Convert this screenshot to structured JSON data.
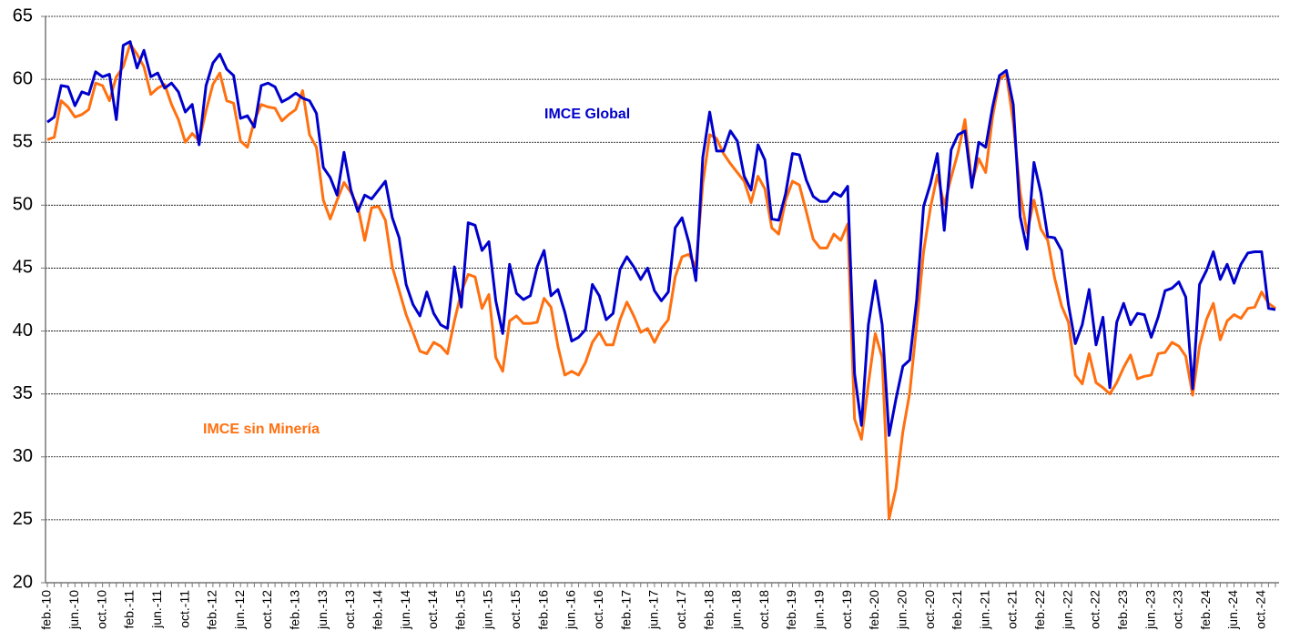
{
  "chart_data": {
    "type": "line",
    "categories": [
      "feb.-10",
      null,
      null,
      null,
      "jun.-10",
      null,
      null,
      null,
      "oct.-10",
      null,
      null,
      null,
      "feb.-11",
      null,
      null,
      null,
      "jun.-11",
      null,
      null,
      null,
      "oct.-11",
      null,
      null,
      null,
      "feb.-12",
      null,
      null,
      null,
      "jun.-12",
      null,
      null,
      null,
      "oct.-12",
      null,
      null,
      null,
      "feb.-13",
      null,
      null,
      null,
      "jun.-13",
      null,
      null,
      null,
      "oct.-13",
      null,
      null,
      null,
      "feb.-14",
      null,
      null,
      null,
      "jun.-14",
      null,
      null,
      null,
      "oct.-14",
      null,
      null,
      null,
      "feb.-15",
      null,
      null,
      null,
      "jun.-15",
      null,
      null,
      null,
      "oct.-15",
      null,
      null,
      null,
      "feb.-16",
      null,
      null,
      null,
      "jun.-16",
      null,
      null,
      null,
      "oct.-16",
      null,
      null,
      null,
      "feb.-17",
      null,
      null,
      null,
      "jun.-17",
      null,
      null,
      null,
      "oct.-17",
      null,
      null,
      null,
      "feb.-18",
      null,
      null,
      null,
      "jun.-18",
      null,
      null,
      null,
      "oct.-18",
      null,
      null,
      null,
      "feb.-19",
      null,
      null,
      null,
      "jun.-19",
      null,
      null,
      null,
      "oct.-19",
      null,
      null,
      null,
      "feb.-20",
      null,
      null,
      null,
      "jun.-20",
      null,
      null,
      null,
      "oct.-20",
      null,
      null,
      null,
      "feb.-21",
      null,
      null,
      null,
      "jun.-21",
      null,
      null,
      null,
      "oct.-21",
      null,
      null,
      null,
      "feb.-22",
      null,
      null,
      null,
      "jun.-22",
      null,
      null,
      null,
      "oct.-22",
      null,
      null,
      null,
      "feb.-23",
      null,
      null,
      null,
      "jun.-23",
      null,
      null,
      null,
      "oct.-23",
      null,
      null,
      null,
      "feb.-24",
      null,
      null,
      null,
      "jun.-24",
      null,
      null,
      null,
      "oct.-24",
      null,
      null
    ],
    "series": [
      {
        "name": "IMCE Global",
        "color": "#0000cc",
        "values": [
          56.6,
          57.0,
          59.5,
          59.4,
          57.9,
          59.0,
          58.8,
          60.6,
          60.2,
          60.4,
          56.8,
          62.7,
          63.0,
          60.9,
          62.3,
          60.2,
          60.5,
          59.3,
          59.7,
          59.0,
          57.4,
          58.0,
          54.8,
          59.5,
          61.3,
          62.0,
          60.8,
          60.3,
          56.9,
          57.1,
          56.2,
          59.5,
          59.7,
          59.4,
          58.2,
          58.5,
          58.9,
          58.5,
          58.3,
          57.3,
          53.0,
          52.2,
          50.8,
          54.2,
          51.2,
          49.5,
          50.8,
          50.5,
          51.2,
          51.9,
          49.0,
          47.4,
          43.7,
          42.1,
          41.2,
          43.1,
          41.4,
          40.5,
          40.2,
          45.1,
          41.9,
          48.6,
          48.4,
          46.4,
          47.1,
          42.4,
          39.8,
          45.3,
          43.0,
          42.5,
          42.8,
          45.1,
          46.4,
          42.8,
          43.3,
          41.5,
          39.2,
          39.5,
          40.1,
          43.7,
          42.8,
          40.9,
          41.4,
          44.9,
          45.9,
          45.1,
          44.1,
          45.0,
          43.2,
          42.4,
          43.1,
          48.2,
          49.0,
          47.0,
          44.0,
          53.8,
          57.4,
          54.3,
          54.3,
          55.9,
          55.1,
          52.3,
          51.2,
          54.8,
          53.6,
          48.9,
          48.8,
          50.9,
          54.1,
          54.0,
          52.0,
          50.7,
          50.3,
          50.3,
          51.0,
          50.7,
          51.5,
          36.6,
          32.5,
          40.5,
          44.0,
          40.5,
          31.7,
          34.6,
          37.2,
          37.7,
          42.5,
          49.9,
          51.7,
          54.1,
          48.0,
          54.4,
          55.6,
          55.9,
          51.4,
          55.0,
          54.6,
          57.8,
          60.3,
          60.7,
          58.0,
          49.1,
          46.5,
          53.4,
          51.0,
          47.5,
          47.4,
          46.4,
          42.1,
          39.0,
          40.5,
          43.3,
          38.9,
          41.1,
          35.5,
          40.7,
          42.2,
          40.5,
          41.4,
          41.3,
          39.5,
          41.1,
          43.2,
          43.4,
          43.9,
          42.7,
          35.4,
          43.7,
          44.8,
          46.3,
          44.1,
          45.3,
          43.8,
          45.3,
          46.2,
          46.3,
          46.3,
          41.8,
          41.7
        ]
      },
      {
        "name": "IMCE sin Minería",
        "color": "#ff7010",
        "values": [
          55.2,
          55.4,
          58.3,
          57.8,
          57.0,
          57.2,
          57.6,
          59.7,
          59.5,
          58.3,
          60.2,
          61.0,
          62.8,
          62.0,
          61.0,
          58.8,
          59.3,
          59.6,
          58.0,
          56.8,
          55.0,
          55.7,
          55.1,
          57.5,
          59.6,
          60.5,
          58.3,
          58.1,
          55.1,
          54.6,
          56.7,
          58.0,
          57.8,
          57.7,
          56.7,
          57.2,
          57.6,
          59.1,
          55.6,
          54.6,
          50.4,
          48.9,
          50.4,
          51.8,
          51.0,
          49.9,
          47.2,
          49.8,
          49.9,
          48.8,
          45.1,
          43.2,
          41.3,
          39.9,
          38.4,
          38.2,
          39.1,
          38.8,
          38.2,
          40.8,
          43.1,
          44.5,
          44.3,
          41.8,
          42.9,
          37.9,
          36.8,
          40.8,
          41.2,
          40.6,
          40.6,
          40.7,
          42.6,
          41.9,
          38.8,
          36.5,
          36.8,
          36.5,
          37.5,
          39.1,
          39.9,
          38.9,
          38.9,
          40.9,
          42.3,
          41.2,
          39.9,
          40.2,
          39.1,
          40.2,
          40.9,
          44.3,
          45.9,
          46.1,
          45.1,
          51.7,
          55.6,
          55.3,
          54.1,
          53.3,
          52.6,
          51.9,
          50.2,
          52.3,
          51.3,
          48.2,
          47.7,
          50.4,
          51.9,
          51.6,
          49.5,
          47.3,
          46.6,
          46.6,
          47.7,
          47.2,
          48.5,
          33.0,
          31.4,
          35.8,
          39.8,
          37.9,
          25.1,
          27.5,
          32.0,
          35.1,
          40.5,
          46.3,
          49.8,
          52.4,
          50.0,
          52.2,
          54.2,
          56.8,
          51.7,
          53.7,
          52.6,
          57.0,
          60.0,
          60.4,
          56.6,
          51.0,
          47.8,
          50.4,
          48.1,
          47.2,
          44.2,
          42.0,
          40.7,
          36.5,
          35.8,
          38.2,
          35.9,
          35.5,
          35.0,
          35.9,
          37.1,
          38.1,
          36.2,
          36.4,
          36.5,
          38.2,
          38.3,
          39.1,
          38.8,
          38.0,
          34.9,
          38.8,
          40.9,
          42.2,
          39.3,
          40.8,
          41.3,
          41.0,
          41.8,
          41.9,
          43.1,
          42.2,
          41.8
        ]
      }
    ],
    "ylim": [
      20,
      65
    ],
    "yticks": [
      20,
      25,
      30,
      35,
      40,
      45,
      50,
      55,
      60,
      65
    ],
    "grid": true
  }
}
